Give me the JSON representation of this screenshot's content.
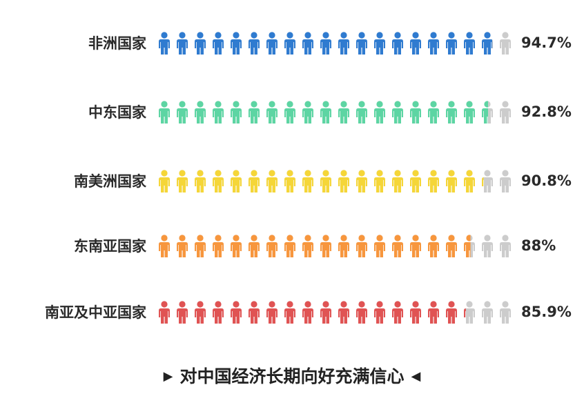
{
  "chart_data": {
    "type": "pictogram",
    "icon": "person-icon",
    "icons_per_row": 20,
    "max_value": 100,
    "unit": "%",
    "empty_color": "#cccccc",
    "categories": [
      "非洲国家",
      "中东国家",
      "南美洲国家",
      "东南亚国家",
      "南亚及中亚国家"
    ],
    "values": [
      94.7,
      92.8,
      90.8,
      88,
      85.9
    ],
    "value_labels": [
      "94.7%",
      "92.8%",
      "90.8%",
      "88%",
      "85.9%"
    ],
    "colors": [
      "#2f7bd0",
      "#5dd5a3",
      "#f5d638",
      "#f7963d",
      "#e05353"
    ]
  },
  "footer": {
    "text": "对中国经济长期向好充满信心",
    "left_marker": "▶",
    "right_marker": "◀"
  }
}
